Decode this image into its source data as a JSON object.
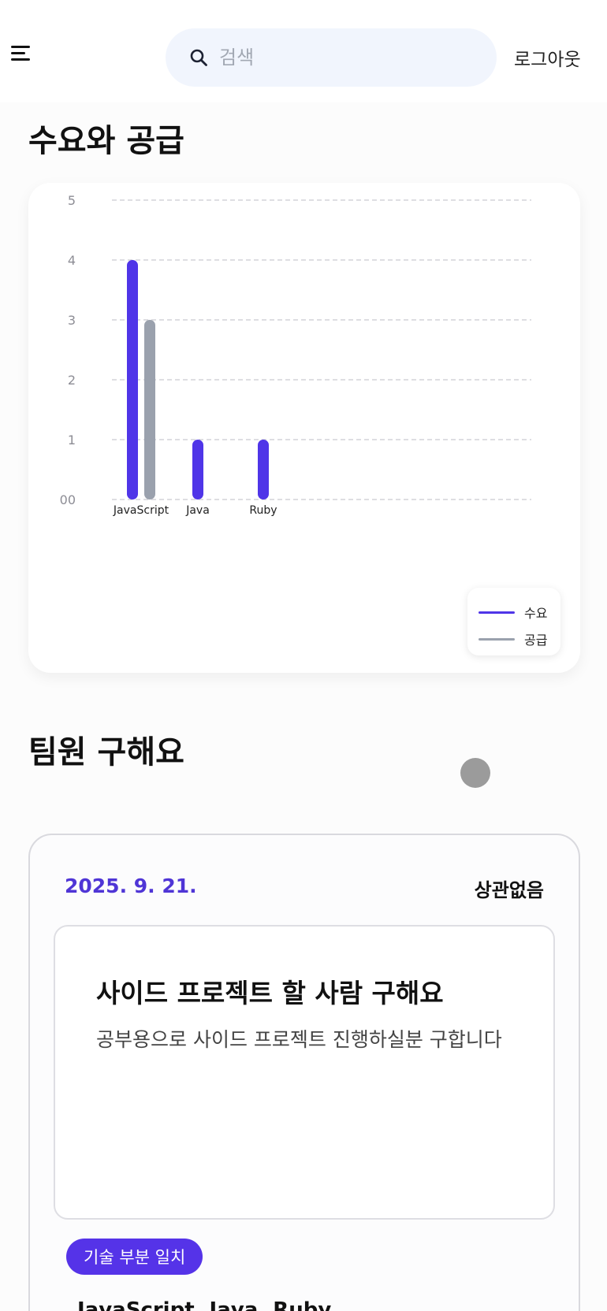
{
  "header": {
    "search_placeholder": "검색",
    "logout_label": "로그아웃"
  },
  "chart_section": {
    "title": "수요와 공급"
  },
  "chart_data": {
    "type": "bar",
    "categories": [
      "JavaScript",
      "Java",
      "Ruby"
    ],
    "series": [
      {
        "name": "수요",
        "values": [
          4,
          1,
          1
        ],
        "color": "#4f35e8"
      },
      {
        "name": "공급",
        "values": [
          3,
          0,
          0
        ],
        "color": "#9aa1ad"
      }
    ],
    "yticks": [
      "00",
      "1",
      "2",
      "3",
      "4",
      "5"
    ],
    "ylim": [
      0,
      5
    ],
    "grid": true,
    "legend_placement": "bottom-right"
  },
  "team_section": {
    "title": "팀원 구해요"
  },
  "post": {
    "date": "2025. 9. 21.",
    "condition": "상관없음",
    "title": "사이드 프로젝트 할 사람 구해요",
    "description": "공부용으로 사이드 프로젝트 진행하실분 구합니다",
    "badge": "기술 부분 일치",
    "skills": "JavaScript, Java, Ruby"
  },
  "colors": {
    "accent": "#4f35e8",
    "secondary": "#9aa1ad"
  }
}
